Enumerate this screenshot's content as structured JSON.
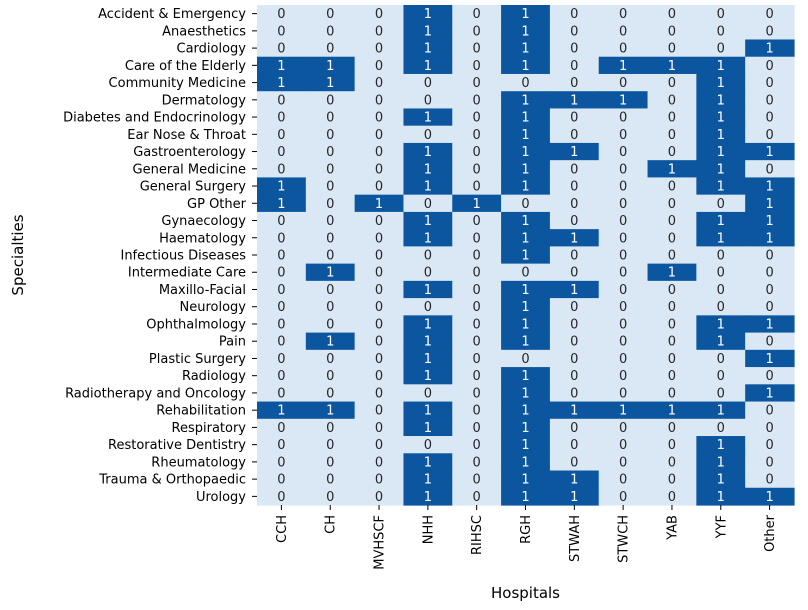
{
  "chart_data": {
    "type": "heatmap",
    "xlabel": "Hospitals",
    "ylabel": "Specialties",
    "x": [
      "CCH",
      "CH",
      "MVHSCF",
      "NHH",
      "RIHSC",
      "RGH",
      "STWAH",
      "STWCH",
      "YAB",
      "YYF",
      "Other"
    ],
    "y": [
      "Accident & Emergency",
      "Anaesthetics",
      "Cardiology",
      "Care of the Elderly",
      "Community Medicine",
      "Dermatology",
      "Diabetes and Endocrinology",
      "Ear Nose & Throat",
      "Gastroenterology",
      "General Medicine",
      "General Surgery",
      "GP Other",
      "Gynaecology",
      "Haematology",
      "Infectious Diseases",
      "Intermediate Care",
      "Maxillo-Facial",
      "Neurology",
      "Ophthalmology",
      "Pain",
      "Plastic Surgery",
      "Radiology",
      "Radiotherapy and Oncology",
      "Rehabilitation",
      "Respiratory",
      "Restorative Dentistry",
      "Rheumatology",
      "Trauma & Orthopaedic",
      "Urology"
    ],
    "values": [
      [
        0,
        0,
        0,
        1,
        0,
        1,
        0,
        0,
        0,
        0,
        0
      ],
      [
        0,
        0,
        0,
        1,
        0,
        1,
        0,
        0,
        0,
        0,
        0
      ],
      [
        0,
        0,
        0,
        1,
        0,
        1,
        0,
        0,
        0,
        0,
        1
      ],
      [
        1,
        1,
        0,
        1,
        0,
        1,
        0,
        1,
        1,
        1,
        0
      ],
      [
        1,
        1,
        0,
        0,
        0,
        0,
        0,
        0,
        0,
        1,
        0
      ],
      [
        0,
        0,
        0,
        0,
        0,
        1,
        1,
        1,
        0,
        1,
        0
      ],
      [
        0,
        0,
        0,
        1,
        0,
        1,
        0,
        0,
        0,
        1,
        0
      ],
      [
        0,
        0,
        0,
        0,
        0,
        1,
        0,
        0,
        0,
        1,
        0
      ],
      [
        0,
        0,
        0,
        1,
        0,
        1,
        1,
        0,
        0,
        1,
        1
      ],
      [
        0,
        0,
        0,
        1,
        0,
        1,
        0,
        0,
        1,
        1,
        0
      ],
      [
        1,
        0,
        0,
        1,
        0,
        1,
        0,
        0,
        0,
        1,
        1
      ],
      [
        1,
        0,
        1,
        0,
        1,
        0,
        0,
        0,
        0,
        0,
        1
      ],
      [
        0,
        0,
        0,
        1,
        0,
        1,
        0,
        0,
        0,
        1,
        1
      ],
      [
        0,
        0,
        0,
        1,
        0,
        1,
        1,
        0,
        0,
        1,
        1
      ],
      [
        0,
        0,
        0,
        0,
        0,
        1,
        0,
        0,
        0,
        0,
        0
      ],
      [
        0,
        1,
        0,
        0,
        0,
        0,
        0,
        0,
        1,
        0,
        0
      ],
      [
        0,
        0,
        0,
        1,
        0,
        1,
        1,
        0,
        0,
        0,
        0
      ],
      [
        0,
        0,
        0,
        0,
        0,
        1,
        0,
        0,
        0,
        0,
        0
      ],
      [
        0,
        0,
        0,
        1,
        0,
        1,
        0,
        0,
        0,
        1,
        1
      ],
      [
        0,
        1,
        0,
        1,
        0,
        1,
        0,
        0,
        0,
        1,
        0
      ],
      [
        0,
        0,
        0,
        1,
        0,
        0,
        0,
        0,
        0,
        0,
        1
      ],
      [
        0,
        0,
        0,
        1,
        0,
        1,
        0,
        0,
        0,
        0,
        0
      ],
      [
        0,
        0,
        0,
        0,
        0,
        1,
        0,
        0,
        0,
        0,
        1
      ],
      [
        1,
        1,
        0,
        1,
        0,
        1,
        1,
        1,
        1,
        1,
        0
      ],
      [
        0,
        0,
        0,
        1,
        0,
        1,
        0,
        0,
        0,
        0,
        0
      ],
      [
        0,
        0,
        0,
        0,
        0,
        1,
        0,
        0,
        0,
        1,
        0
      ],
      [
        0,
        0,
        0,
        1,
        0,
        1,
        0,
        0,
        0,
        1,
        0
      ],
      [
        0,
        0,
        0,
        1,
        0,
        1,
        1,
        0,
        0,
        1,
        0
      ],
      [
        0,
        0,
        0,
        1,
        0,
        1,
        1,
        0,
        0,
        1,
        1
      ]
    ],
    "colorscale": {
      "0": "#dae8f5",
      "1": "#0c56a0"
    },
    "text_colors": {
      "0": "#262626",
      "1": "#ffffff"
    },
    "annotated": true,
    "colorbar": false
  }
}
